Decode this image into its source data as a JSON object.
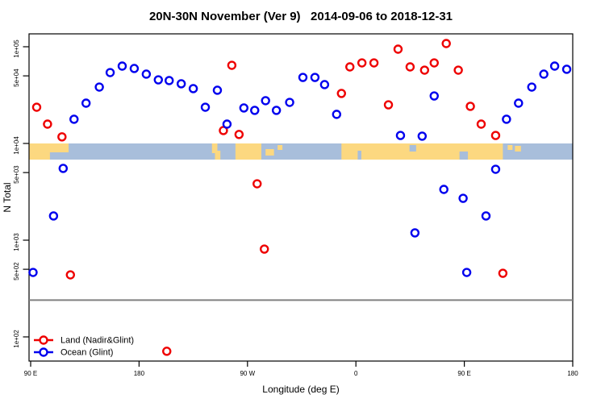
{
  "title": "20N-30N November (Ver 9)   2014-09-06 to 2018-12-31",
  "legend": {
    "items": [
      {
        "label": "Land (Nadir&Glint)",
        "color": "#ee0000"
      },
      {
        "label": "Ocean (Glint)",
        "color": "#0000ee"
      }
    ]
  },
  "chart_data": {
    "type": "scatter",
    "title": "20N-30N November (Ver 9)   2014-09-06 to 2018-12-31",
    "xlabel": "Longitude (deg E)",
    "ylabel": "N Total",
    "x_axis": {
      "range_deg": [
        90,
        540
      ],
      "ticks": [
        {
          "lon": 90,
          "label": "90 E"
        },
        {
          "lon": 180,
          "label": "180"
        },
        {
          "lon": 270,
          "label": "90 W"
        },
        {
          "lon": 360,
          "label": "0"
        },
        {
          "lon": 450,
          "label": "90 E"
        },
        {
          "lon": 540,
          "label": "180"
        }
      ]
    },
    "y_axis": {
      "scale": "log",
      "ticks": [
        {
          "value": 100000,
          "label": "1e+05"
        },
        {
          "value": 50000,
          "label": "5e+04"
        },
        {
          "value": 10000,
          "label": "1e+04"
        },
        {
          "value": 5000,
          "label": "5e+03"
        },
        {
          "value": 1000,
          "label": "1e+03"
        },
        {
          "value": 500,
          "label": "5e+02"
        },
        {
          "value": 100,
          "label": "1e+02"
        }
      ]
    },
    "series": [
      {
        "name": "Land (Nadir&Glint)",
        "color": "#ee0000",
        "points": [
          [
            95,
            23700
          ],
          [
            104,
            15850
          ],
          [
            116,
            11700
          ],
          [
            123,
            438
          ],
          [
            203,
            71
          ],
          [
            250,
            13600
          ],
          [
            257,
            64300
          ],
          [
            263,
            12400
          ],
          [
            278,
            3830
          ],
          [
            284,
            809
          ],
          [
            348,
            32900
          ],
          [
            355,
            61900
          ],
          [
            365,
            68100
          ],
          [
            375,
            68100
          ],
          [
            387,
            25100
          ],
          [
            395,
            94400
          ],
          [
            405,
            61900
          ],
          [
            417,
            57300
          ],
          [
            425,
            68100
          ],
          [
            435,
            108000
          ],
          [
            445,
            57300
          ],
          [
            455,
            24200
          ],
          [
            464,
            15850
          ],
          [
            476,
            12100
          ],
          [
            482,
            455
          ]
        ]
      },
      {
        "name": "Ocean (Glint)",
        "color": "#0000ee",
        "points": [
          [
            92,
            464
          ],
          [
            109,
            1780
          ],
          [
            117,
            5520
          ],
          [
            126,
            17800
          ],
          [
            136,
            26100
          ],
          [
            147,
            38300
          ],
          [
            156,
            54100
          ],
          [
            166,
            63100
          ],
          [
            176,
            59600
          ],
          [
            186,
            52100
          ],
          [
            196,
            45500
          ],
          [
            205,
            44700
          ],
          [
            215,
            41400
          ],
          [
            225,
            36900
          ],
          [
            235,
            23700
          ],
          [
            245,
            35500
          ],
          [
            253,
            15850
          ],
          [
            267,
            23300
          ],
          [
            276,
            22000
          ],
          [
            285,
            27700
          ],
          [
            294,
            22000
          ],
          [
            305,
            26600
          ],
          [
            316,
            48200
          ],
          [
            326,
            48200
          ],
          [
            334,
            40600
          ],
          [
            344,
            20000
          ],
          [
            397,
            12100
          ],
          [
            409,
            1190
          ],
          [
            415,
            11900
          ],
          [
            425,
            31000
          ],
          [
            433,
            3350
          ],
          [
            449,
            2710
          ],
          [
            452,
            464
          ],
          [
            468,
            1780
          ],
          [
            476,
            5410
          ],
          [
            485,
            17800
          ],
          [
            495,
            26100
          ],
          [
            506,
            38300
          ],
          [
            516,
            52100
          ],
          [
            525,
            63100
          ],
          [
            535,
            58500
          ]
        ]
      }
    ],
    "reference_line": {
      "value": 240,
      "color": "#808080"
    },
    "map_band": {
      "top_value": 10000,
      "bottom_value": 6810,
      "ocean_color": "#a8bedb",
      "land_color": "#fcd880",
      "land_segments": [
        [
          88.7,
          121.5,
          0,
          0.55
        ],
        [
          88.7,
          106,
          0.55,
          1
        ],
        [
          240.5,
          245,
          0,
          0.6
        ],
        [
          243,
          247.5,
          0.45,
          1
        ],
        [
          260,
          281.5,
          0,
          1
        ],
        [
          285,
          292,
          0.35,
          0.75
        ],
        [
          295,
          299,
          0.1,
          0.4
        ],
        [
          348,
          482,
          0,
          1
        ],
        [
          486,
          490,
          0.1,
          0.4
        ],
        [
          492,
          497,
          0.15,
          0.5
        ]
      ],
      "ocean_notches": [
        [
          361.5,
          364.5,
          0.45,
          1
        ],
        [
          404.5,
          410,
          0.1,
          0.5
        ],
        [
          446,
          453,
          0.5,
          1
        ]
      ]
    }
  }
}
